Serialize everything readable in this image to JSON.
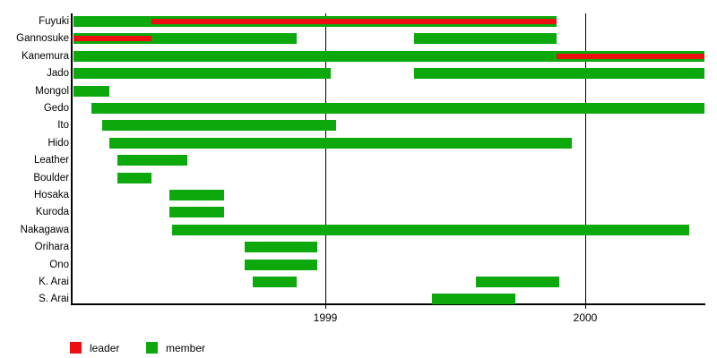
{
  "chart_data": {
    "type": "gantt-timeline",
    "title": "",
    "x_axis": {
      "ticks": [
        1999,
        2000
      ],
      "tick_labels": [
        "1999",
        "2000"
      ],
      "range": [
        1998.02,
        2000.47
      ],
      "grid": true
    },
    "rows": [
      {
        "label": "Fuyuki",
        "member": [
          [
            1998.03,
            1999.89
          ]
        ],
        "leader": [
          [
            1998.33,
            1999.89
          ]
        ]
      },
      {
        "label": "Gannosuke",
        "member": [
          [
            1998.03,
            1998.89
          ],
          [
            1999.34,
            1999.89
          ]
        ],
        "leader": [
          [
            1998.03,
            1998.33
          ]
        ]
      },
      {
        "label": "Kanemura",
        "member": [
          [
            1998.03,
            2000.46
          ]
        ],
        "leader": [
          [
            1999.89,
            2000.46
          ]
        ]
      },
      {
        "label": "Jado",
        "member": [
          [
            1998.03,
            1999.02
          ],
          [
            1999.34,
            2000.46
          ]
        ],
        "leader": []
      },
      {
        "label": "Mongol",
        "member": [
          [
            1998.03,
            1998.17
          ]
        ],
        "leader": []
      },
      {
        "label": "Gedo",
        "member": [
          [
            1998.1,
            2000.46
          ]
        ],
        "leader": []
      },
      {
        "label": "Ito",
        "member": [
          [
            1998.14,
            1999.04
          ]
        ],
        "leader": []
      },
      {
        "label": "Hido",
        "member": [
          [
            1998.17,
            1999.95
          ]
        ],
        "leader": []
      },
      {
        "label": "Leather",
        "member": [
          [
            1998.2,
            1998.47
          ]
        ],
        "leader": []
      },
      {
        "label": "Boulder",
        "member": [
          [
            1998.2,
            1998.33
          ]
        ],
        "leader": []
      },
      {
        "label": "Hosaka",
        "member": [
          [
            1998.4,
            1998.61
          ]
        ],
        "leader": []
      },
      {
        "label": "Kuroda",
        "member": [
          [
            1998.4,
            1998.61
          ]
        ],
        "leader": []
      },
      {
        "label": "Nakagawa",
        "member": [
          [
            1998.41,
            2000.4
          ]
        ],
        "leader": []
      },
      {
        "label": "Orihara",
        "member": [
          [
            1998.69,
            1998.97
          ]
        ],
        "leader": []
      },
      {
        "label": "Ono",
        "member": [
          [
            1998.69,
            1998.97
          ]
        ],
        "leader": []
      },
      {
        "label": "K. Arai",
        "member": [
          [
            1998.72,
            1998.89
          ],
          [
            1999.58,
            1999.9
          ]
        ],
        "leader": []
      },
      {
        "label": "S. Arai",
        "member": [
          [
            1999.41,
            1999.73
          ]
        ],
        "leader": []
      }
    ],
    "legend": [
      {
        "label": "leader",
        "color": "#ee1010"
      },
      {
        "label": "member",
        "color": "#0ca80c"
      }
    ],
    "colors": {
      "member_green": "#0ca80c",
      "leader_red": "#ee1010",
      "axis": "#000000",
      "background": "#ffffff"
    }
  }
}
